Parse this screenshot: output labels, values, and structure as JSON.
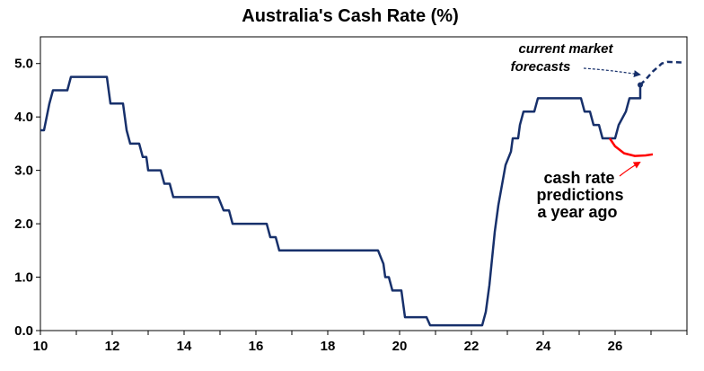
{
  "chart_data": {
    "type": "line",
    "title": "Australia's Cash Rate (%)",
    "xlabel": "",
    "ylabel": "",
    "xlim": [
      10,
      28
    ],
    "ylim": [
      0,
      5.5
    ],
    "x_ticks": [
      10,
      12,
      14,
      16,
      18,
      20,
      22,
      24,
      26
    ],
    "y_ticks": [
      0.0,
      1.0,
      2.0,
      3.0,
      4.0,
      5.0
    ],
    "x_tick_labels": [
      "10",
      "12",
      "14",
      "16",
      "18",
      "20",
      "22",
      "24",
      "26"
    ],
    "y_tick_labels": [
      "0.0",
      "1.0",
      "2.0",
      "3.0",
      "4.0",
      "5.0"
    ],
    "grid": false,
    "legend": "none",
    "series": [
      {
        "style": "solid",
        "color": "#17306b",
        "points": [
          [
            10.0,
            3.75
          ],
          [
            10.1,
            3.75
          ],
          [
            10.25,
            4.25
          ],
          [
            10.35,
            4.5
          ],
          [
            10.75,
            4.5
          ],
          [
            10.85,
            4.75
          ],
          [
            11.85,
            4.75
          ],
          [
            11.95,
            4.25
          ],
          [
            12.3,
            4.25
          ],
          [
            12.4,
            3.75
          ],
          [
            12.5,
            3.5
          ],
          [
            12.75,
            3.5
          ],
          [
            12.85,
            3.25
          ],
          [
            12.95,
            3.25
          ],
          [
            13.0,
            3.0
          ],
          [
            13.35,
            3.0
          ],
          [
            13.45,
            2.75
          ],
          [
            13.6,
            2.75
          ],
          [
            13.7,
            2.5
          ],
          [
            14.95,
            2.5
          ],
          [
            15.1,
            2.25
          ],
          [
            15.25,
            2.25
          ],
          [
            15.35,
            2.0
          ],
          [
            16.3,
            2.0
          ],
          [
            16.4,
            1.75
          ],
          [
            16.55,
            1.75
          ],
          [
            16.65,
            1.5
          ],
          [
            19.4,
            1.5
          ],
          [
            19.55,
            1.25
          ],
          [
            19.6,
            1.0
          ],
          [
            19.7,
            1.0
          ],
          [
            19.8,
            0.75
          ],
          [
            20.05,
            0.75
          ],
          [
            20.1,
            0.5
          ],
          [
            20.15,
            0.25
          ],
          [
            20.75,
            0.25
          ],
          [
            20.85,
            0.1
          ],
          [
            22.3,
            0.1
          ],
          [
            22.4,
            0.35
          ],
          [
            22.5,
            0.85
          ],
          [
            22.65,
            1.85
          ],
          [
            22.75,
            2.35
          ],
          [
            22.95,
            3.1
          ],
          [
            23.1,
            3.35
          ],
          [
            23.15,
            3.6
          ],
          [
            23.3,
            3.6
          ],
          [
            23.35,
            3.85
          ],
          [
            23.45,
            4.1
          ],
          [
            23.75,
            4.1
          ],
          [
            23.85,
            4.35
          ],
          [
            25.05,
            4.35
          ],
          [
            25.15,
            4.1
          ],
          [
            25.3,
            4.1
          ],
          [
            25.4,
            3.85
          ],
          [
            25.55,
            3.85
          ],
          [
            25.65,
            3.6
          ],
          [
            26.0,
            3.6
          ],
          [
            26.1,
            3.85
          ],
          [
            26.3,
            4.1
          ],
          [
            26.4,
            4.35
          ],
          [
            26.7,
            4.35
          ],
          [
            26.7,
            4.6
          ]
        ]
      },
      {
        "style": "dashed",
        "color": "#17306b",
        "points": [
          [
            26.7,
            4.6
          ],
          [
            26.85,
            4.7
          ],
          [
            27.05,
            4.85
          ],
          [
            27.3,
            5.0
          ],
          [
            27.45,
            5.03
          ],
          [
            27.85,
            5.02
          ]
        ]
      },
      {
        "style": "solid",
        "color": "#ff0000",
        "points": [
          [
            25.85,
            3.6
          ],
          [
            26.0,
            3.45
          ],
          [
            26.25,
            3.32
          ],
          [
            26.55,
            3.27
          ],
          [
            26.85,
            3.28
          ],
          [
            27.05,
            3.3
          ]
        ]
      }
    ],
    "annotations": {
      "forecast_line1": "current market",
      "forecast_line2": "forecasts",
      "predictions_line1": "cash rate",
      "predictions_line2": "predictions",
      "predictions_line3": "a year ago"
    },
    "colors": {
      "forecast_text": "#17306b",
      "predictions_text": "#ff0000",
      "forecast_arrow": "#17306b",
      "predictions_arrow": "#ff0000"
    }
  }
}
